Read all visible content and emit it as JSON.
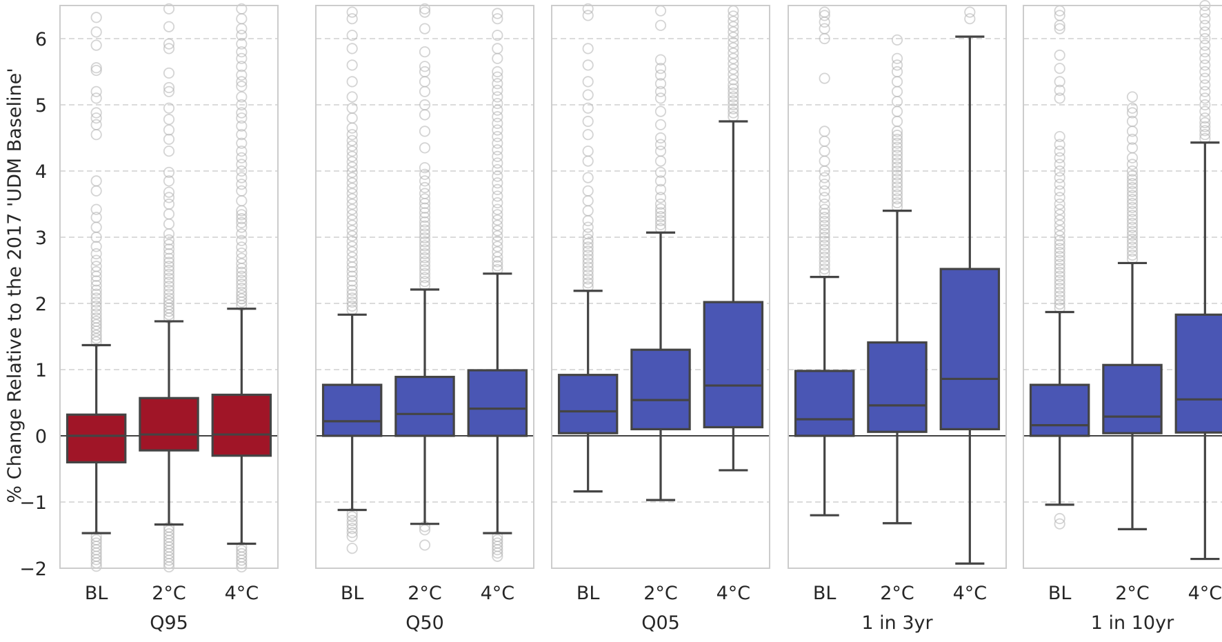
{
  "chart_data": {
    "type": "box",
    "ylabel": "% Change Relative to the 2017 'UDM Baseline'",
    "ylim": [
      -2,
      6.5
    ],
    "yticks": [
      -2,
      -1,
      0,
      1,
      2,
      3,
      4,
      5,
      6
    ],
    "ytick_labels": [
      "−2",
      "−1",
      "0",
      "1",
      "2",
      "3",
      "4",
      "5",
      "6"
    ],
    "grid": "horizontal dashed",
    "colors": {
      "warm": "#A01527",
      "cool": "#4A56B4",
      "line": "#444444",
      "outlier": "#B0B0B0",
      "grid": "#CFCFCF",
      "spine": "#CCCCCC"
    },
    "categories": [
      "BL",
      "2°C",
      "4°C"
    ],
    "panels": [
      {
        "label": "Q95",
        "color": "warm",
        "boxes": [
          {
            "category": "BL",
            "whisker_low": -1.47,
            "q1": -0.4,
            "median": 0.0,
            "q3": 0.32,
            "whisker_high": 1.37,
            "outliers": [
              1.42,
              1.47,
              1.52,
              1.58,
              1.63,
              1.68,
              1.73,
              1.78,
              1.84,
              1.9,
              1.96,
              2.02,
              2.08,
              2.14,
              2.2,
              2.27,
              2.34,
              2.41,
              2.48,
              2.56,
              2.65,
              2.75,
              2.86,
              3.0,
              3.15,
              3.3,
              3.42,
              3.7,
              3.85,
              4.55,
              4.7,
              4.8,
              4.88,
              5.1,
              5.2,
              5.52,
              5.56,
              5.9,
              6.1,
              6.32,
              -1.52,
              -1.57,
              -1.62,
              -1.67,
              -1.72,
              -1.77,
              -1.82,
              -1.87,
              -1.92,
              -1.97
            ]
          },
          {
            "category": "2°C",
            "whisker_low": -1.34,
            "q1": -0.22,
            "median": 0.02,
            "q3": 0.57,
            "whisker_high": 1.73,
            "outliers": [
              1.78,
              1.83,
              1.88,
              1.93,
              1.98,
              2.03,
              2.08,
              2.14,
              2.2,
              2.26,
              2.32,
              2.38,
              2.44,
              2.5,
              2.56,
              2.62,
              2.68,
              2.75,
              2.82,
              2.89,
              2.96,
              3.05,
              3.2,
              3.35,
              3.5,
              3.6,
              3.68,
              3.85,
              3.98,
              4.3,
              4.48,
              4.62,
              4.78,
              4.95,
              5.2,
              5.26,
              5.48,
              5.85,
              5.92,
              6.18,
              6.45,
              -1.38,
              -1.43,
              -1.48,
              -1.53,
              -1.58,
              -1.63,
              -1.68,
              -1.73,
              -1.78,
              -1.83,
              -1.88,
              -1.93,
              -1.98
            ]
          },
          {
            "category": "4°C",
            "whisker_low": -1.63,
            "q1": -0.3,
            "median": 0.02,
            "q3": 0.62,
            "whisker_high": 1.92,
            "outliers": [
              1.97,
              2.02,
              2.07,
              2.12,
              2.17,
              2.23,
              2.29,
              2.35,
              2.41,
              2.47,
              2.53,
              2.6,
              2.68,
              2.76,
              2.85,
              2.95,
              3.05,
              3.15,
              3.22,
              3.28,
              3.34,
              3.4,
              3.55,
              3.7,
              3.8,
              3.9,
              4.0,
              4.1,
              4.2,
              4.3,
              4.42,
              4.55,
              4.68,
              4.8,
              4.88,
              5.0,
              5.12,
              5.28,
              5.35,
              5.45,
              5.58,
              5.7,
              5.8,
              5.92,
              6.05,
              6.15,
              6.3,
              6.45,
              -1.68,
              -1.73,
              -1.78,
              -1.83,
              -1.88,
              -1.93,
              -1.98
            ]
          }
        ]
      },
      {
        "label": "Q50",
        "color": "cool",
        "boxes": [
          {
            "category": "BL",
            "whisker_low": -1.12,
            "q1": 0.0,
            "median": 0.22,
            "q3": 0.77,
            "whisker_high": 1.83,
            "outliers": [
              1.9,
              1.96,
              2.02,
              2.08,
              2.14,
              2.2,
              2.27,
              2.34,
              2.41,
              2.48,
              2.55,
              2.62,
              2.7,
              2.78,
              2.86,
              2.94,
              3.02,
              3.1,
              3.18,
              3.26,
              3.34,
              3.42,
              3.5,
              3.58,
              3.66,
              3.74,
              3.82,
              3.9,
              3.98,
              4.06,
              4.14,
              4.22,
              4.3,
              4.38,
              4.46,
              4.55,
              4.65,
              4.8,
              4.95,
              5.12,
              5.35,
              5.6,
              5.85,
              6.05,
              6.3,
              6.4,
              -1.17,
              -1.22,
              -1.28,
              -1.34,
              -1.4,
              -1.46,
              -1.52,
              -1.7
            ]
          },
          {
            "category": "2°C",
            "whisker_low": -1.33,
            "q1": 0.0,
            "median": 0.33,
            "q3": 0.89,
            "whisker_high": 2.21,
            "outliers": [
              2.27,
              2.33,
              2.39,
              2.45,
              2.51,
              2.57,
              2.63,
              2.69,
              2.75,
              2.81,
              2.87,
              2.93,
              2.99,
              3.05,
              3.11,
              3.17,
              3.23,
              3.3,
              3.37,
              3.44,
              3.51,
              3.58,
              3.66,
              3.75,
              3.85,
              3.95,
              4.05,
              4.35,
              4.6,
              4.85,
              5.0,
              5.2,
              5.35,
              5.5,
              5.58,
              5.8,
              6.15,
              6.4,
              6.45,
              -1.37,
              -1.42,
              -1.65
            ]
          },
          {
            "category": "4°C",
            "whisker_low": -1.47,
            "q1": 0.0,
            "median": 0.41,
            "q3": 0.99,
            "whisker_high": 2.45,
            "outliers": [
              2.51,
              2.57,
              2.63,
              2.7,
              2.78,
              2.86,
              2.94,
              3.02,
              3.1,
              3.18,
              3.26,
              3.34,
              3.42,
              3.52,
              3.62,
              3.72,
              3.82,
              3.92,
              4.02,
              4.12,
              4.22,
              4.32,
              4.42,
              4.52,
              4.62,
              4.72,
              4.82,
              4.92,
              5.02,
              5.12,
              5.22,
              5.32,
              5.42,
              5.5,
              5.7,
              5.85,
              6.05,
              6.3,
              6.38,
              -1.52,
              -1.57,
              -1.62,
              -1.67,
              -1.72,
              -1.77,
              -1.82
            ]
          }
        ]
      },
      {
        "label": "Q05",
        "color": "cool",
        "boxes": [
          {
            "category": "BL",
            "whisker_low": -0.84,
            "q1": 0.04,
            "median": 0.37,
            "q3": 0.92,
            "whisker_high": 2.19,
            "outliers": [
              2.25,
              2.31,
              2.37,
              2.43,
              2.49,
              2.55,
              2.61,
              2.67,
              2.73,
              2.79,
              2.85,
              2.91,
              2.97,
              3.05,
              3.15,
              3.25,
              3.4,
              3.55,
              3.7,
              3.9,
              4.15,
              4.3,
              4.55,
              4.75,
              4.95,
              5.15,
              5.35,
              5.6,
              5.85,
              6.35,
              6.45
            ]
          },
          {
            "category": "2°C",
            "whisker_low": -0.97,
            "q1": 0.1,
            "median": 0.54,
            "q3": 1.3,
            "whisker_high": 3.07,
            "outliers": [
              3.13,
              3.19,
              3.25,
              3.31,
              3.37,
              3.43,
              3.5,
              3.6,
              3.72,
              3.85,
              3.98,
              4.15,
              4.3,
              4.4,
              4.5,
              4.7,
              4.9,
              5.1,
              5.2,
              5.32,
              5.45,
              5.55,
              5.68,
              6.2,
              6.42
            ]
          },
          {
            "category": "4°C",
            "whisker_low": -0.52,
            "q1": 0.13,
            "median": 0.76,
            "q3": 2.02,
            "whisker_high": 4.75,
            "outliers": [
              4.82,
              4.88,
              4.94,
              5.0,
              5.06,
              5.12,
              5.18,
              5.24,
              5.3,
              5.38,
              5.46,
              5.54,
              5.62,
              5.7,
              5.78,
              5.86,
              5.94,
              6.02,
              6.1,
              6.18,
              6.26,
              6.34,
              6.42
            ]
          }
        ]
      },
      {
        "label": "1 in 3yr",
        "color": "cool",
        "boxes": [
          {
            "category": "BL",
            "whisker_low": -1.2,
            "q1": 0.0,
            "median": 0.25,
            "q3": 0.98,
            "whisker_high": 2.4,
            "outliers": [
              2.46,
              2.52,
              2.58,
              2.64,
              2.7,
              2.76,
              2.82,
              2.88,
              2.94,
              3.0,
              3.06,
              3.12,
              3.18,
              3.24,
              3.3,
              3.36,
              3.42,
              3.5,
              3.6,
              3.7,
              3.8,
              3.9,
              4.0,
              4.15,
              4.3,
              4.45,
              4.6,
              5.4,
              6.0,
              6.15,
              6.25,
              6.35,
              6.4
            ]
          },
          {
            "category": "2°C",
            "whisker_low": -1.32,
            "q1": 0.06,
            "median": 0.46,
            "q3": 1.41,
            "whisker_high": 3.4,
            "outliers": [
              3.46,
              3.52,
              3.58,
              3.64,
              3.7,
              3.76,
              3.82,
              3.88,
              3.94,
              4.0,
              4.06,
              4.12,
              4.18,
              4.24,
              4.3,
              4.36,
              4.42,
              4.48,
              4.54,
              4.6,
              4.75,
              4.9,
              5.05,
              5.2,
              5.35,
              5.5,
              5.6,
              5.7,
              5.98
            ]
          },
          {
            "category": "4°C",
            "whisker_low": -1.93,
            "q1": 0.1,
            "median": 0.86,
            "q3": 2.52,
            "whisker_high": 6.03,
            "outliers": [
              6.3,
              6.4
            ]
          }
        ]
      },
      {
        "label": "1 in 10yr",
        "color": "cool",
        "boxes": [
          {
            "category": "BL",
            "whisker_low": -1.04,
            "q1": 0.0,
            "median": 0.16,
            "q3": 0.77,
            "whisker_high": 1.87,
            "outliers": [
              1.93,
              1.99,
              2.05,
              2.11,
              2.17,
              2.23,
              2.29,
              2.35,
              2.41,
              2.47,
              2.53,
              2.59,
              2.65,
              2.71,
              2.77,
              2.83,
              2.89,
              2.95,
              3.02,
              3.1,
              3.18,
              3.26,
              3.34,
              3.42,
              3.5,
              3.6,
              3.7,
              3.8,
              3.9,
              4.0,
              4.1,
              4.2,
              4.3,
              4.4,
              4.52,
              5.1,
              5.22,
              5.35,
              5.55,
              5.75,
              6.15,
              6.2,
              6.35,
              6.42,
              -1.25,
              -1.33
            ]
          },
          {
            "category": "2°C",
            "whisker_low": -1.41,
            "q1": 0.04,
            "median": 0.29,
            "q3": 1.07,
            "whisker_high": 2.61,
            "outliers": [
              2.67,
              2.73,
              2.79,
              2.85,
              2.91,
              2.97,
              3.03,
              3.09,
              3.15,
              3.21,
              3.27,
              3.33,
              3.39,
              3.45,
              3.51,
              3.57,
              3.63,
              3.69,
              3.75,
              3.81,
              3.87,
              3.93,
              4.0,
              4.1,
              4.2,
              4.35,
              4.48,
              4.6,
              4.75,
              4.88,
              4.95,
              5.12
            ]
          },
          {
            "category": "4°C",
            "whisker_low": -1.86,
            "q1": 0.05,
            "median": 0.55,
            "q3": 1.83,
            "whisker_high": 4.43,
            "outliers": [
              4.49,
              4.55,
              4.61,
              4.67,
              4.73,
              4.8,
              4.9,
              5.0,
              5.1,
              5.2,
              5.3,
              5.4,
              5.5,
              5.6,
              5.7,
              5.8,
              5.9,
              6.0,
              6.1,
              6.2,
              6.3,
              6.4,
              6.5
            ]
          }
        ]
      }
    ]
  }
}
